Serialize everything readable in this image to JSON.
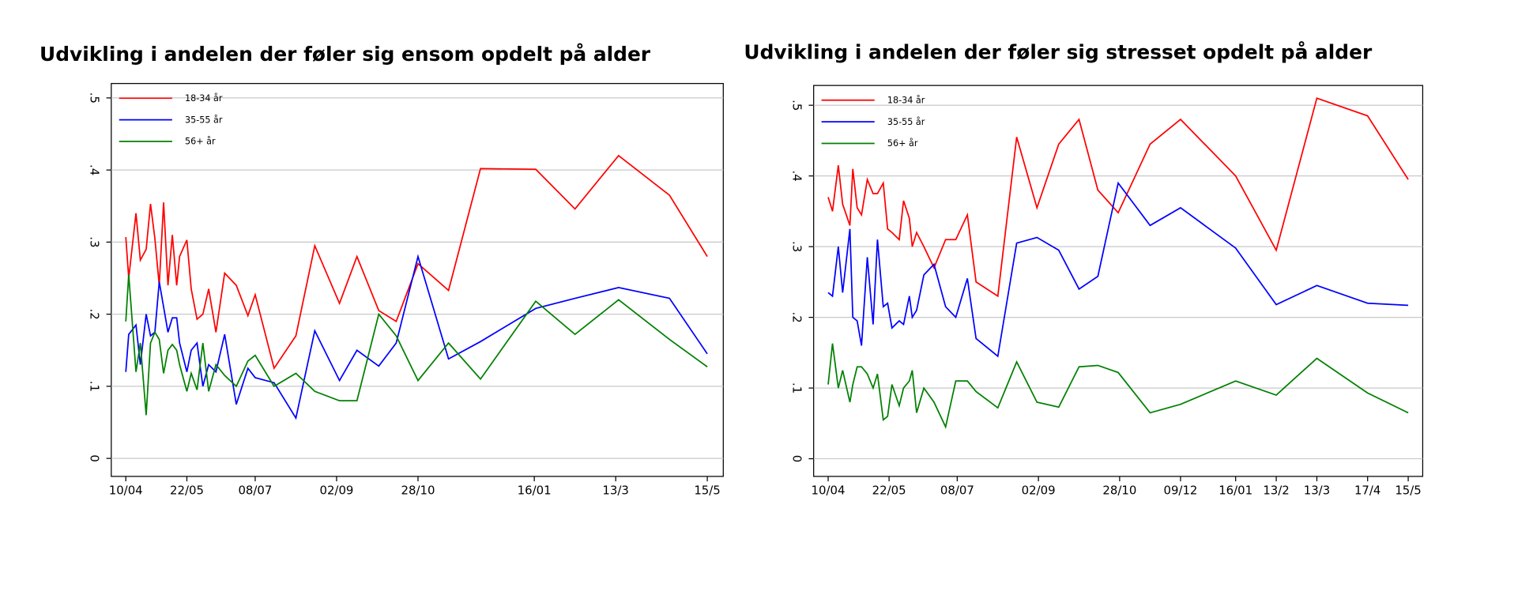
{
  "chart_data": [
    {
      "type": "line",
      "title": "Udvikling i andelen der føler sig ensom opdelt på alder",
      "x": [
        0,
        2,
        7,
        10,
        14,
        17,
        20,
        23,
        26,
        29,
        32,
        35,
        37,
        42,
        45,
        49,
        53,
        57,
        62,
        68,
        76,
        84,
        89,
        102,
        117,
        130,
        147,
        159,
        174,
        186,
        201,
        222,
        244,
        282,
        309,
        339,
        374,
        400
      ],
      "series": [
        {
          "name": "18-34 år",
          "color": "#ff0000",
          "values": [
            0.307,
            0.25,
            0.34,
            0.275,
            0.29,
            0.353,
            0.305,
            0.24,
            0.355,
            0.24,
            0.31,
            0.24,
            0.28,
            0.303,
            0.235,
            0.193,
            0.2,
            0.235,
            0.175,
            0.257,
            0.24,
            0.198,
            0.227,
            0.125,
            0.17,
            0.295,
            0.215,
            0.28,
            0.205,
            0.19,
            0.27,
            0.233,
            0.402,
            0.401,
            0.346,
            0.42,
            0.365,
            0.28
          ]
        },
        {
          "name": "35-55 år",
          "color": "#0000ff",
          "values": [
            0.12,
            0.172,
            0.185,
            0.13,
            0.2,
            0.17,
            0.175,
            0.245,
            0.21,
            0.175,
            0.195,
            0.195,
            0.16,
            0.12,
            0.15,
            0.16,
            0.1,
            0.13,
            0.12,
            0.172,
            0.075,
            0.125,
            0.112,
            0.105,
            0.056,
            0.177,
            0.108,
            0.15,
            0.128,
            0.16,
            0.28,
            0.138,
            0.162,
            0.208,
            0.222,
            0.237,
            0.222,
            0.145
          ]
        },
        {
          "name": "56+ år",
          "color": "#008000",
          "values": [
            0.19,
            0.255,
            0.12,
            0.16,
            0.06,
            0.16,
            0.175,
            0.165,
            0.118,
            0.15,
            0.158,
            0.15,
            0.13,
            0.093,
            0.118,
            0.095,
            0.16,
            0.093,
            0.13,
            0.115,
            0.1,
            0.135,
            0.143,
            0.1,
            0.118,
            0.093,
            0.08,
            0.08,
            0.2,
            0.17,
            0.108,
            0.16,
            0.11,
            0.218,
            0.172,
            0.22,
            0.165,
            0.127
          ]
        }
      ],
      "xlim": [
        -10,
        411
      ],
      "xticks": [
        {
          "value": 0,
          "label": "10/04"
        },
        {
          "value": 42,
          "label": "22/05"
        },
        {
          "value": 89,
          "label": "08/07"
        },
        {
          "value": 145,
          "label": "02/09"
        },
        {
          "value": 201,
          "label": "28/10"
        },
        {
          "value": 281,
          "label": "16/01"
        },
        {
          "value": 337,
          "label": "13/3"
        },
        {
          "value": 400,
          "label": "15/5"
        }
      ],
      "ylim": [
        -0.025,
        0.52
      ],
      "yticks": [
        0,
        {
          "value": 0.1,
          "label": ".1"
        },
        {
          "value": 0.2,
          "label": ".2"
        },
        {
          "value": 0.3,
          "label": ".3"
        },
        {
          "value": 0.4,
          "label": ".4"
        },
        {
          "value": 0.5,
          "label": ".5"
        }
      ],
      "grid": true
    },
    {
      "type": "line",
      "title": "Udvikling i andelen der føler sig stresset opdelt på alder",
      "x": [
        0,
        3,
        7,
        10,
        15,
        17,
        20,
        23,
        27,
        31,
        34,
        38,
        41,
        44,
        49,
        52,
        56,
        58,
        61,
        66,
        73,
        81,
        88,
        96,
        102,
        117,
        130,
        144,
        159,
        173,
        186,
        200,
        222,
        243,
        281,
        309,
        337,
        372,
        400
      ],
      "series": [
        {
          "name": "18-34 år",
          "color": "#ff0000",
          "values": [
            0.37,
            0.35,
            0.415,
            0.36,
            0.33,
            0.41,
            0.355,
            0.345,
            0.395,
            0.375,
            0.375,
            0.39,
            0.325,
            0.32,
            0.31,
            0.365,
            0.34,
            0.3,
            0.32,
            0.3,
            0.27,
            0.31,
            0.31,
            0.345,
            0.25,
            0.23,
            0.455,
            0.355,
            0.445,
            0.48,
            0.38,
            0.348,
            0.445,
            0.48,
            0.4,
            0.295,
            0.51,
            0.485,
            0.395
          ]
        },
        {
          "name": "35-55 år",
          "color": "#0000ff",
          "values": [
            0.235,
            0.23,
            0.3,
            0.235,
            0.325,
            0.2,
            0.195,
            0.16,
            0.285,
            0.19,
            0.31,
            0.215,
            0.22,
            0.185,
            0.195,
            0.19,
            0.23,
            0.2,
            0.21,
            0.26,
            0.275,
            0.215,
            0.2,
            0.255,
            0.17,
            0.145,
            0.305,
            0.313,
            0.295,
            0.24,
            0.258,
            0.39,
            0.33,
            0.355,
            0.298,
            0.218,
            0.245,
            0.22,
            0.217
          ]
        },
        {
          "name": "56+ år",
          "color": "#008000",
          "values": [
            0.105,
            0.163,
            0.1,
            0.125,
            0.08,
            0.105,
            0.13,
            0.13,
            0.12,
            0.1,
            0.12,
            0.055,
            0.06,
            0.105,
            0.075,
            0.1,
            0.11,
            0.125,
            0.065,
            0.1,
            0.08,
            0.045,
            0.11,
            0.11,
            0.095,
            0.072,
            0.137,
            0.08,
            0.073,
            0.13,
            0.132,
            0.122,
            0.065,
            0.077,
            0.11,
            0.09,
            0.142,
            0.093,
            0.065
          ]
        }
      ],
      "xlim": [
        -10,
        410
      ],
      "xticks": [
        {
          "value": 0,
          "label": "10/04"
        },
        {
          "value": 42,
          "label": "22/05"
        },
        {
          "value": 89,
          "label": "08/07"
        },
        {
          "value": 145,
          "label": "02/09"
        },
        {
          "value": 201,
          "label": "28/10"
        },
        {
          "value": 243,
          "label": "09/12"
        },
        {
          "value": 281,
          "label": "16/01"
        },
        {
          "value": 309,
          "label": "13/2"
        },
        {
          "value": 337,
          "label": "13/3"
        },
        {
          "value": 372,
          "label": "17/4"
        },
        {
          "value": 400,
          "label": "15/5"
        }
      ],
      "ylim": [
        -0.025,
        0.528
      ],
      "yticks": [
        0,
        {
          "value": 0.1,
          "label": ".1"
        },
        {
          "value": 0.2,
          "label": ".2"
        },
        {
          "value": 0.3,
          "label": ".3"
        },
        {
          "value": 0.4,
          "label": ".4"
        },
        {
          "value": 0.5,
          "label": ".5"
        }
      ],
      "grid": true
    }
  ]
}
